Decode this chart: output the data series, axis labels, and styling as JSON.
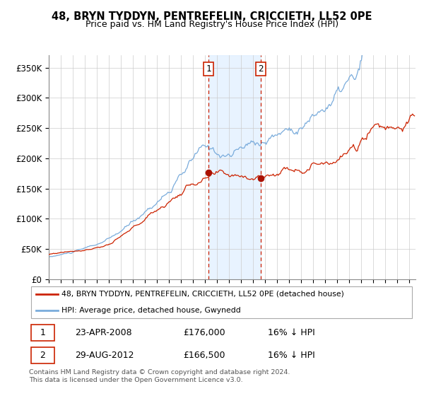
{
  "title1": "48, BRYN TYDDYN, PENTREFELIN, CRICCIETH, LL52 0PE",
  "title2": "Price paid vs. HM Land Registry's House Price Index (HPI)",
  "hpi_color": "#7aacdc",
  "price_color": "#cc2200",
  "marker_color": "#aa1100",
  "shade_color": "#ddeeff",
  "purchase1_date": 2008.29,
  "purchase2_date": 2012.63,
  "purchase1_price": 176000,
  "purchase2_price": 166500,
  "legend_house": "48, BRYN TYDDYN, PENTREFELIN, CRICCIETH, LL52 0PE (detached house)",
  "legend_hpi": "HPI: Average price, detached house, Gwynedd",
  "footnote": "Contains HM Land Registry data © Crown copyright and database right 2024.\nThis data is licensed under the Open Government Licence v3.0.",
  "ylim": [
    0,
    370000
  ],
  "yticks": [
    0,
    50000,
    100000,
    150000,
    200000,
    250000,
    300000,
    350000
  ],
  "ytick_labels": [
    "£0",
    "£50K",
    "£100K",
    "£150K",
    "£200K",
    "£250K",
    "£300K",
    "£350K"
  ],
  "xstart": 1995.0,
  "xend": 2025.5,
  "xticks": [
    1995,
    1996,
    1997,
    1998,
    1999,
    2000,
    2001,
    2002,
    2003,
    2004,
    2005,
    2006,
    2007,
    2008,
    2009,
    2010,
    2011,
    2012,
    2013,
    2014,
    2015,
    2016,
    2017,
    2018,
    2019,
    2020,
    2021,
    2022,
    2023,
    2024,
    2025
  ]
}
